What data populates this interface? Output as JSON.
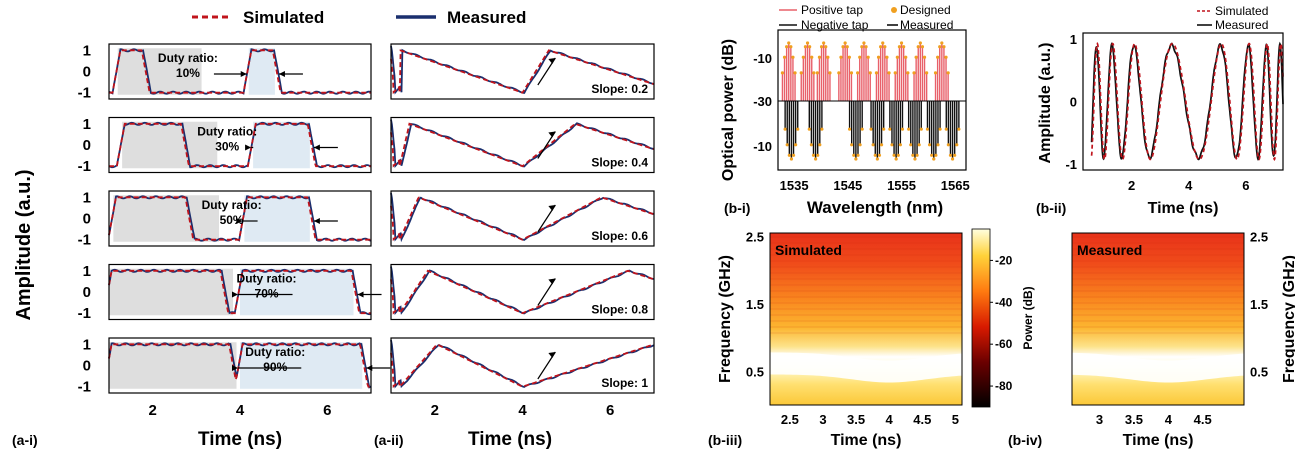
{
  "legend_top": {
    "simulated": "Simulated",
    "measured": "Measured"
  },
  "colors": {
    "simulated": "#c0141c",
    "measured": "#1a2f6e",
    "positive_tap": "#e8606a",
    "negative_tap": "#111111",
    "designed": "#f0a020",
    "duty_shade": "#d8d8d8",
    "duty_shade_right": "#dce8f2"
  },
  "panel_labels": {
    "a_i": "(a-i)",
    "a_ii": "(a-ii)",
    "b_i": "(b-i)",
    "b_ii": "(b-ii)",
    "b_iii": "(b-iii)",
    "b_iv": "(b-iv)"
  },
  "chart_data": [
    {
      "id": "a_i",
      "type": "line",
      "ylabel": "Amplitude (a.u.)",
      "xlabel": "Time (ns)",
      "xlim": [
        1,
        7
      ],
      "ylim": [
        -1.3,
        1.3
      ],
      "xticks": [
        2,
        4,
        6
      ],
      "yticks": [
        1,
        0,
        -1
      ],
      "subplots": [
        {
          "annotation": "Duty ratio:",
          "value": "10%",
          "duty": 0.1,
          "pulses": [
            [
              1.2,
              1.8
            ],
            [
              4.2,
              4.8
            ]
          ]
        },
        {
          "annotation": "Duty ratio:",
          "value": "30%",
          "duty": 0.3,
          "pulses": [
            [
              1.3,
              2.7
            ],
            [
              4.3,
              5.6
            ]
          ]
        },
        {
          "annotation": "Duty ratio:",
          "value": "50%",
          "duty": 0.5,
          "pulses": [
            [
              1.1,
              2.8
            ],
            [
              4.1,
              5.6
            ]
          ]
        },
        {
          "annotation": "Duty ratio:",
          "value": "70%",
          "duty": 0.7,
          "pulses": [
            [
              1.0,
              3.6
            ],
            [
              4.0,
              6.6
            ]
          ]
        },
        {
          "annotation": "Duty ratio:",
          "value": "90%",
          "duty": 0.9,
          "pulses": [
            [
              1.0,
              3.8
            ],
            [
              4.0,
              6.8
            ]
          ]
        }
      ]
    },
    {
      "id": "a_ii",
      "type": "line",
      "xlabel": "Time (ns)",
      "xlim": [
        1,
        7
      ],
      "ylim": [
        -1.3,
        1.3
      ],
      "xticks": [
        2,
        4,
        6
      ],
      "subplots": [
        {
          "label": "Slope: 0.2",
          "peak": 0.2
        },
        {
          "label": "Slope: 0.4",
          "peak": 0.4
        },
        {
          "label": "Slope: 0.6",
          "peak": 0.6
        },
        {
          "label": "Slope: 0.8",
          "peak": 0.8
        },
        {
          "label": "Slope: 1",
          "peak": 1.0
        }
      ]
    },
    {
      "id": "b_i",
      "type": "bar",
      "xlabel": "Wavelength (nm)",
      "ylabel": "Optical power (dB)",
      "xlim": [
        1532,
        1567
      ],
      "xticks": [
        1535,
        1545,
        1555,
        1565
      ],
      "ytick_labels_top": [
        "-10"
      ],
      "ytick_center": "-30",
      "ytick_labels_bottom": [
        "-10"
      ],
      "legend": [
        "Positive tap",
        "Negative tap",
        "Designed",
        "Measured"
      ],
      "groups": [
        {
          "center": 1534.0,
          "sign": 1
        },
        {
          "center": 1537.5,
          "sign": 1
        },
        {
          "center": 1540.5,
          "sign": 1
        },
        {
          "center": 1544.5,
          "sign": 1
        },
        {
          "center": 1548.0,
          "sign": 1
        },
        {
          "center": 1551.5,
          "sign": 1
        },
        {
          "center": 1555.0,
          "sign": 1
        },
        {
          "center": 1558.5,
          "sign": 1
        },
        {
          "center": 1562.5,
          "sign": 1
        },
        {
          "center": 1534.5,
          "sign": -1
        },
        {
          "center": 1539.0,
          "sign": -1
        },
        {
          "center": 1546.5,
          "sign": -1
        },
        {
          "center": 1550.5,
          "sign": -1
        },
        {
          "center": 1554.0,
          "sign": -1
        },
        {
          "center": 1557.5,
          "sign": -1
        },
        {
          "center": 1561.0,
          "sign": -1
        },
        {
          "center": 1564.5,
          "sign": -1
        }
      ]
    },
    {
      "id": "b_ii",
      "type": "line",
      "xlabel": "Time (ns)",
      "ylabel": "Amplitude (a.u.)",
      "xlim": [
        0.3,
        7.3
      ],
      "ylim": [
        -1.1,
        1.1
      ],
      "xticks": [
        2,
        4,
        6
      ],
      "yticks": [
        1,
        0,
        -1
      ],
      "legend": [
        "Simulated",
        "Measured"
      ]
    },
    {
      "id": "b_iii",
      "type": "heatmap",
      "title": "Simulated",
      "xlabel": "Time (ns)",
      "ylabel": "Frequency (GHz)",
      "xlim": [
        2.2,
        5.1
      ],
      "ylim": [
        0,
        2.55
      ],
      "xticks": [
        2.5,
        3,
        3.5,
        4,
        4.5,
        5
      ],
      "yticks": [
        0.5,
        1.5,
        2.5
      ]
    },
    {
      "id": "colorbar",
      "type": "heatmap",
      "label": "Power (dB)",
      "ticks": [
        -20,
        -40,
        -60,
        -80
      ],
      "range": [
        -90,
        -5
      ]
    },
    {
      "id": "b_iv",
      "type": "heatmap",
      "title": "Measured",
      "xlabel": "Time (ns)",
      "ylabel": "Frequency (GHz)",
      "xlim": [
        2.6,
        5.1
      ],
      "ylim": [
        0,
        2.55
      ],
      "xticks": [
        3,
        3.5,
        4,
        4.5
      ],
      "yticks": [
        0.5,
        1.5,
        2.5
      ]
    }
  ]
}
